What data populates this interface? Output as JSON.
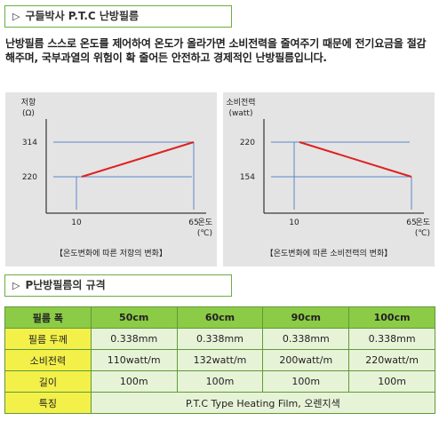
{
  "sections": {
    "ptc_title": "구들박사 P.T.C 난방필름",
    "spec_title": "P난방필름의 규격",
    "marker_icon": "triangle-right-icon"
  },
  "description": "난방필름 스스로 온도를 제어하여 온도가 올라가면 소비전력을 줄여주기 때문에 전기요금을 절감해주며, 국부과열의 위험이 확 줄어든 안전하고 경제적인 난방필름입니다.",
  "colors": {
    "accent_green": "#6cae3f",
    "line_red": "#e02020",
    "guide_blue": "#5b86c8",
    "table_header": "#8ccb46",
    "row_head": "#f3f04a",
    "panel_bg": "#e4e4e4"
  },
  "chart_data": [
    {
      "type": "line",
      "ylabel_line1": "저항",
      "ylabel_line2": "(Ω)",
      "xlabel_line1": "온도",
      "xlabel_line2": "(℃)",
      "xticks": [
        "10",
        "65"
      ],
      "yticks": [
        "220",
        "314"
      ],
      "series": [
        {
          "x": [
            10,
            65
          ],
          "y": [
            220,
            314
          ]
        }
      ],
      "caption": "【온도변화에 따른 저항의 변화】"
    },
    {
      "type": "line",
      "ylabel_line1": "소비전력",
      "ylabel_line2": "(watt)",
      "xlabel_line1": "온도",
      "xlabel_line2": "(℃)",
      "xticks": [
        "10",
        "65"
      ],
      "yticks": [
        "154",
        "220"
      ],
      "series": [
        {
          "x": [
            10,
            65
          ],
          "y": [
            220,
            154
          ]
        }
      ],
      "caption": "【온도변화에 따른 소비전력의 변화】"
    }
  ],
  "spec_table": {
    "header": [
      "필름 폭",
      "50cm",
      "60cm",
      "90cm",
      "100cm"
    ],
    "rows": [
      [
        "필름 두께",
        "0.338mm",
        "0.338mm",
        "0.338mm",
        "0.338mm"
      ],
      [
        "소비전력",
        "110watt/m",
        "132watt/m",
        "200watt/m",
        "220watt/m"
      ],
      [
        "길이",
        "100m",
        "100m",
        "100m",
        "100m"
      ]
    ],
    "last_row": [
      "특징",
      "P.T.C Type Heating Film, 오렌지색"
    ]
  }
}
